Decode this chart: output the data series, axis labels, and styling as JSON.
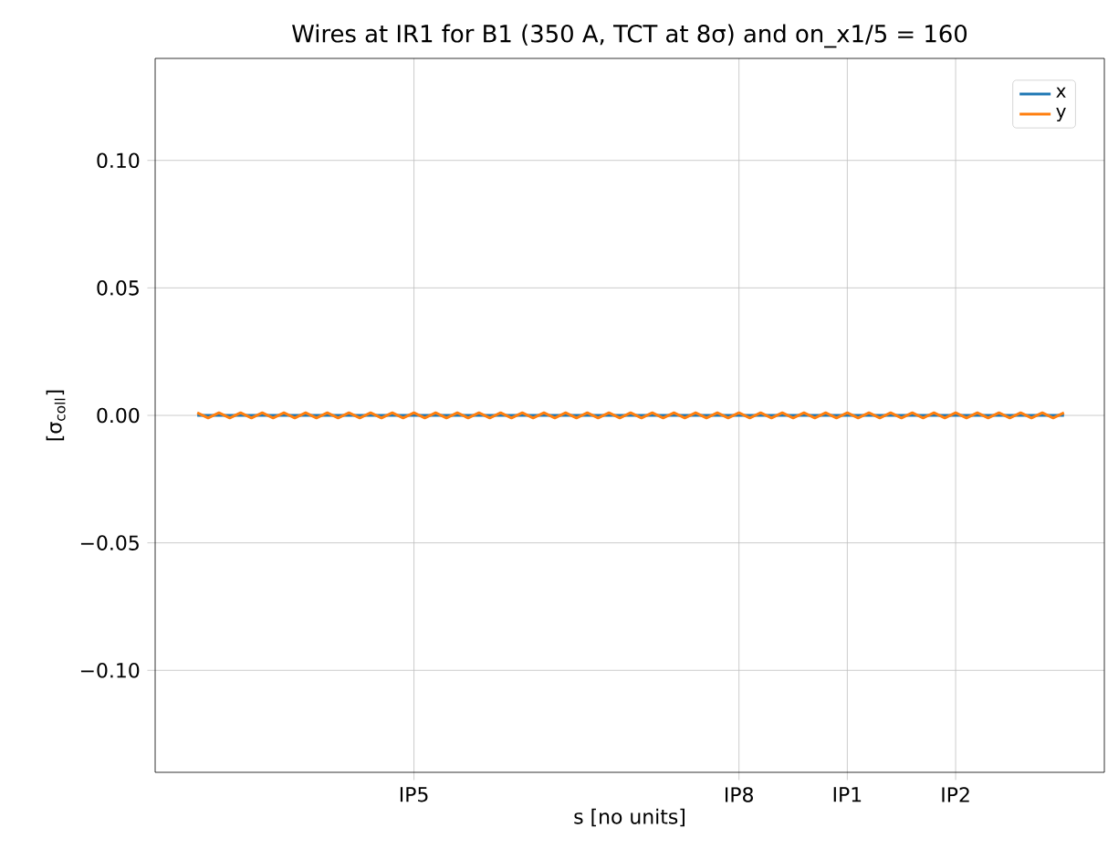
{
  "chart_data": {
    "type": "line",
    "title": "Wires at IR1 for B1 (350 A, TCT at 8σ) and on_x1/5 = 160",
    "xlabel": "s [no units]",
    "ylabel": "[σ$_{coll}$]",
    "categories": [
      null,
      null,
      null,
      null,
      null,
      null,
      null,
      null,
      null,
      null,
      null,
      null,
      null,
      null,
      null,
      null,
      null,
      null,
      null,
      null,
      "IP5",
      null,
      null,
      null,
      null,
      null,
      null,
      null,
      null,
      null,
      null,
      null,
      null,
      null,
      null,
      null,
      null,
      null,
      null,
      null,
      null,
      null,
      null,
      null,
      null,
      null,
      null,
      null,
      null,
      null,
      "IP8",
      null,
      null,
      null,
      null,
      null,
      null,
      null,
      null,
      null,
      "IP1",
      null,
      null,
      null,
      null,
      null,
      null,
      null,
      null,
      null,
      "IP2",
      null,
      null,
      null,
      null,
      null,
      null,
      null,
      null,
      null,
      null
    ],
    "series": [
      {
        "name": "x",
        "color": "#1f77b4",
        "values": [
          0,
          0,
          0,
          0,
          0,
          0,
          0,
          0,
          0,
          0,
          0,
          0,
          0,
          0,
          0,
          0,
          0,
          0,
          0,
          0,
          0,
          0,
          0,
          0,
          0,
          0,
          0,
          0,
          0,
          0,
          0,
          0,
          0,
          0,
          0,
          0,
          0,
          0,
          0,
          0,
          0,
          0,
          0,
          0,
          0,
          0,
          0,
          0,
          0,
          0,
          0,
          0,
          0,
          0,
          0,
          0,
          0,
          0,
          0,
          0,
          0,
          0,
          0,
          0,
          0,
          0,
          0,
          0,
          0,
          0,
          0,
          0,
          0,
          0,
          0,
          0,
          0,
          0,
          0,
          0,
          0
        ]
      },
      {
        "name": "y",
        "color": "#ff7f0e",
        "values": [
          0.001,
          -0.001,
          0.001,
          -0.001,
          0.001,
          -0.001,
          0.001,
          -0.001,
          0.001,
          -0.001,
          0.001,
          -0.001,
          0.001,
          -0.001,
          0.001,
          -0.001,
          0.001,
          -0.001,
          0.001,
          -0.001,
          0.001,
          -0.001,
          0.001,
          -0.001,
          0.001,
          -0.001,
          0.001,
          -0.001,
          0.001,
          -0.001,
          0.001,
          -0.001,
          0.001,
          -0.001,
          0.001,
          -0.001,
          0.001,
          -0.001,
          0.001,
          -0.001,
          0.001,
          -0.001,
          0.001,
          -0.001,
          0.001,
          -0.001,
          0.001,
          -0.001,
          0.001,
          -0.001,
          0.001,
          -0.001,
          0.001,
          -0.001,
          0.001,
          -0.001,
          0.001,
          -0.001,
          0.001,
          -0.001,
          0.001,
          -0.001,
          0.001,
          -0.001,
          0.001,
          -0.001,
          0.001,
          -0.001,
          0.001,
          -0.001,
          0.001,
          -0.001,
          0.001,
          -0.001,
          0.001,
          -0.001,
          0.001,
          -0.001,
          0.001,
          -0.001,
          0.001
        ]
      }
    ],
    "ylim": [
      -0.14,
      0.14
    ],
    "yticks": [
      {
        "value": -0.1,
        "label": "−0.10"
      },
      {
        "value": -0.05,
        "label": "−0.05"
      },
      {
        "value": 0,
        "label": "0.00"
      },
      {
        "value": 0.05,
        "label": "0.05"
      },
      {
        "value": 0.1,
        "label": "0.10"
      }
    ],
    "grid": true,
    "legend": "top right",
    "marker": "none",
    "line_style": "solid"
  }
}
